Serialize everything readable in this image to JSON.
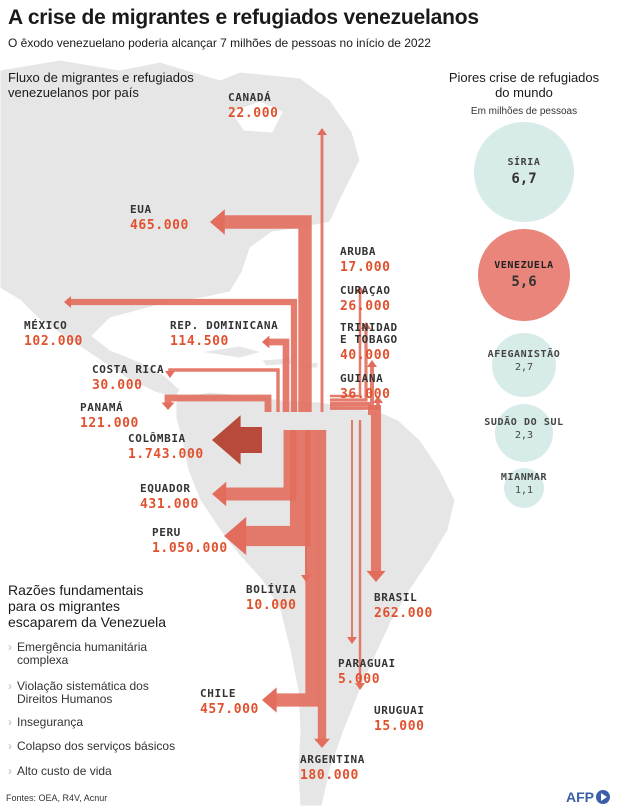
{
  "title": "A crise de migrantes e refugiados venezuelanos",
  "subtitle": "O êxodo venezuelano poderia alcançar 7 milhões de pessoas no início de 2022",
  "flow_title": [
    "Fluxo de migrantes e refugiados",
    "venezuelanos por país"
  ],
  "destinations": [
    {
      "country": [
        "CANADÁ"
      ],
      "value": "22.000",
      "count": 22000
    },
    {
      "country": [
        "EUA"
      ],
      "value": "465.000",
      "count": 465000
    },
    {
      "country": [
        "MÉXICO"
      ],
      "value": "102.000",
      "count": 102000
    },
    {
      "country": [
        "REP. DOMINICANA"
      ],
      "value": "114.500",
      "count": 114500
    },
    {
      "country": [
        "COSTA RICA"
      ],
      "value": "30.000",
      "count": 30000
    },
    {
      "country": [
        "PANAMÁ"
      ],
      "value": "121.000",
      "count": 121000
    },
    {
      "country": [
        "COLÔMBIA"
      ],
      "value": "1.743.000",
      "count": 1743000
    },
    {
      "country": [
        "EQUADOR"
      ],
      "value": "431.000",
      "count": 431000
    },
    {
      "country": [
        "PERU"
      ],
      "value": "1.050.000",
      "count": 1050000
    },
    {
      "country": [
        "BOLÍVIA"
      ],
      "value": "10.000",
      "count": 10000
    },
    {
      "country": [
        "CHILE"
      ],
      "value": "457.000",
      "count": 457000
    },
    {
      "country": [
        "ARGENTINA"
      ],
      "value": "180.000",
      "count": 180000
    },
    {
      "country": [
        "URUGUAI"
      ],
      "value": "15.000",
      "count": 15000
    },
    {
      "country": [
        "PARAGUAI"
      ],
      "value": "5.000",
      "count": 5000
    },
    {
      "country": [
        "BRASIL"
      ],
      "value": "262.000",
      "count": 262000
    },
    {
      "country": [
        "GUIANA"
      ],
      "value": "36.000",
      "count": 36000
    },
    {
      "country": [
        "TRINIDAD",
        "E TOBAGO"
      ],
      "value": "40.000",
      "count": 40000
    },
    {
      "country": [
        "CURAÇAO"
      ],
      "value": "26.000",
      "count": 26000
    },
    {
      "country": [
        "ARUBA"
      ],
      "value": "17.000",
      "count": 17000
    }
  ],
  "crises": {
    "title": [
      "Piores crise de refugiados",
      "do mundo"
    ],
    "unit": "Em milhões de pessoas",
    "items": [
      {
        "name": "SÍRIA",
        "value": "6,7",
        "millions": 6.7
      },
      {
        "name": "VENEZUELA",
        "value": "5,6",
        "millions": 5.6,
        "highlight": true
      },
      {
        "name": "AFEGANISTÃO",
        "value": "2,7",
        "millions": 2.7
      },
      {
        "name": "SUDÃO DO SUL",
        "value": "2,3",
        "millions": 2.3
      },
      {
        "name": "MIANMAR",
        "value": "1,1",
        "millions": 1.1
      }
    ],
    "colors": {
      "default": "#d7ebe9",
      "highlight": "#e9857a"
    }
  },
  "reasons": {
    "title": [
      "Razões fundamentais",
      "para os migrantes",
      "escaparem da Venezuela"
    ],
    "items": [
      [
        "Emergência humanitária",
        "complexa"
      ],
      [
        "Violação sistemática dos",
        "Direitos Humanos"
      ],
      [
        "Insegurança"
      ],
      [
        "Colapso dos serviços básicos"
      ],
      [
        "Alto custo de vida"
      ]
    ]
  },
  "sources": "Fontes: OEA, R4V, Acnur",
  "logo": "AFP",
  "colors": {
    "arrow": "#e26d5d",
    "arrow_dark": "#b84a3c",
    "value": "#e0522f",
    "land": "#e4e4e4"
  }
}
